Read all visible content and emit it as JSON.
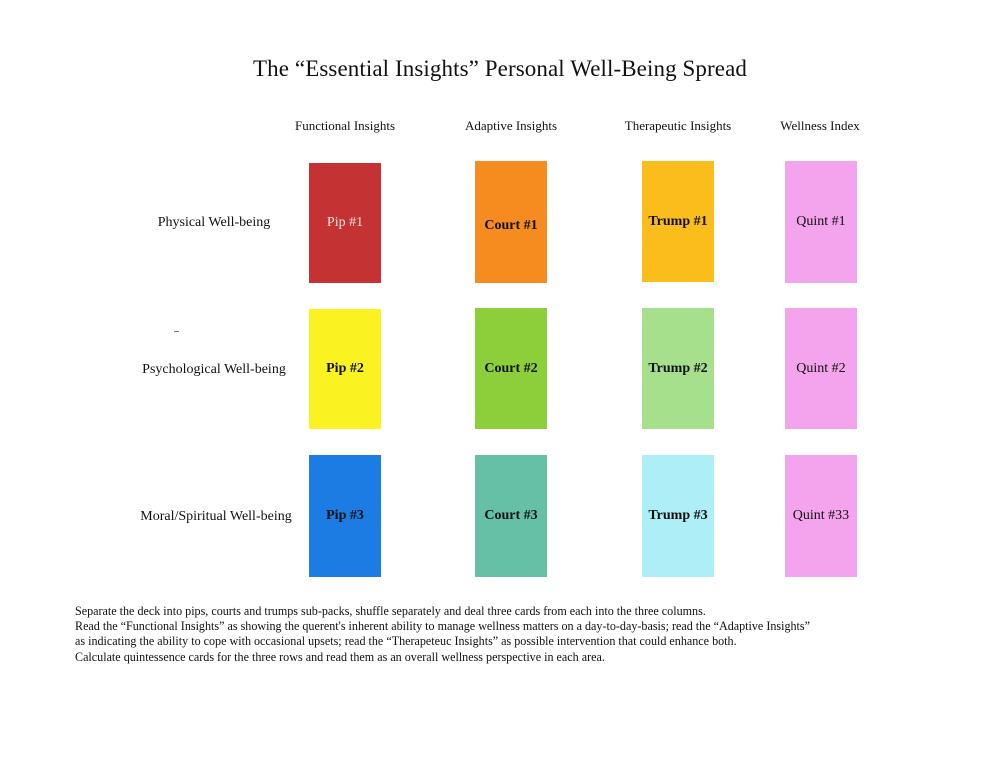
{
  "title": "The “Essential Insights” Personal Well-Being Spread",
  "columns": [
    "Functional Insights",
    "Adaptive Insights",
    "Therapeutic Insights",
    "Wellness Index"
  ],
  "rows": [
    "Physical Well-being",
    "Psychological Well-being",
    "Moral/Spiritual Well-being"
  ],
  "cards": [
    [
      {
        "label": "Pip #1",
        "color": "#c43233",
        "text_color": "#f3e6e6"
      },
      {
        "label": "Court #1",
        "color": "#f68c1f",
        "text_color": "#111111"
      },
      {
        "label": "Trump #1",
        "color": "#fbbd1b",
        "text_color": "#111111"
      },
      {
        "label": "Quint #1",
        "color": "#f4a4ec",
        "text_color": "#111111"
      }
    ],
    [
      {
        "label": "Pip #2",
        "color": "#fbf222",
        "text_color": "#111111"
      },
      {
        "label": "Court #2",
        "color": "#8ccf3a",
        "text_color": "#111111"
      },
      {
        "label": "Trump #2",
        "color": "#a6e08c",
        "text_color": "#111111"
      },
      {
        "label": "Quint #2",
        "color": "#f4a4ec",
        "text_color": "#111111"
      }
    ],
    [
      {
        "label": "Pip #3",
        "color": "#1c7ce4",
        "text_color": "#111111"
      },
      {
        "label": "Court #3",
        "color": "#66c0a6",
        "text_color": "#111111"
      },
      {
        "label": "Trump #3",
        "color": "#aeeef6",
        "text_color": "#111111"
      },
      {
        "label": "Quint #33",
        "color": "#f4a4ec",
        "text_color": "#111111"
      }
    ]
  ],
  "instructions": [
    "Separate the deck into pips, courts and trumps sub-packs, shuffle separately and deal three cards from each into the three columns.",
    "Read the “Functional Insights” as showing the querent's inherent ability to manage wellness matters on a day-to-day-basis; read the “Adaptive Insights”",
    "as indicating the ability to cope with occasional upsets; read the “Therapeteuc Insights” as possible  intervention that could enhance both.",
    "Calculate  quintessence cards for the three rows and read them as an overall wellness perspective in each area."
  ]
}
